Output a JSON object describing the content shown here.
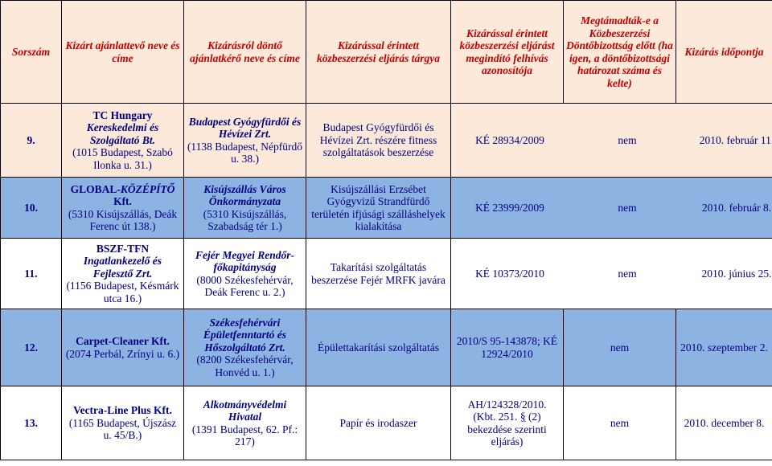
{
  "headers": [
    "Sorszám",
    "Kizárt ajánlattevő neve és címe",
    "Kizárásról döntő ajánlatkérő neve és címe",
    "Kizárással érintett közbeszerzési eljárás tárgya",
    "Kizárással érintett közbeszerzési eljárást megindító felhívás azonosítója",
    "Megtámadták-e a Közbeszerzési Döntőbizottság előtt (ha igen, a döntőbizottsági határozat száma és kelte)",
    "Kizárás időpontja"
  ],
  "rows": [
    {
      "num": "9.",
      "bidder": {
        "name_bold": "TC Hungary",
        "name_italic": "Kereskedelmi és Szolgáltató Bt.",
        "address": "(1015 Budapest, Szabó Ilonka u. 31.)"
      },
      "authority": {
        "name_italic": "Budapest Gyógyfürdői és Hévízei Zrt.",
        "address": "(1138 Budapest, Népfürdő u. 38.)"
      },
      "subject": "Budapest Gyógyfürdői és Hévízei Zrt. részére fitness szolgáltatások beszerzése",
      "notice_id": "KÉ 28934/2009",
      "challenged": "nem",
      "date": "2010. február 11."
    },
    {
      "num": "10.",
      "bidder": {
        "name_bold": "GLOBAL-",
        "name_italic": "KÖZÉPÍTŐ",
        "name_bold2": "Kft.",
        "address": "(5310 Kisújszállás, Deák Ferenc út 138.)"
      },
      "authority": {
        "name_italic": "Kisújszállás Város Önkormányzata",
        "address": "(5310 Kisújszállás, Szabadság tér 1.)"
      },
      "subject": "Kisújszállási Erzsébet Gyógyvizű Strandfürdő területén ifjúsági szálláshelyek kialakítása",
      "notice_id": "KÉ 23999/2009",
      "challenged": "nem",
      "date": "2010. február 8."
    },
    {
      "num": "11.",
      "bidder": {
        "name_bold": "BSZF-TFN",
        "name_italic": "Ingatlankezelő és Fejlesztő Zrt.",
        "address": "(1156 Budapest, Késmárk utca 16.)"
      },
      "authority": {
        "name_italic": "Fejér Megyei Rendőr-főkapitányság",
        "address": "(8000 Székesfehérvár, Deák Ferenc u. 2.)"
      },
      "subject": "Takarítási szolgáltatás beszerzése Fejér MRFK javára",
      "notice_id": "KÉ 10373/2010",
      "challenged": "nem",
      "date": "2010. június 25."
    },
    {
      "num": "12.",
      "bidder": {
        "name_bold": "Carpet-Cleaner Kft.",
        "name_italic": "",
        "address": "(2074 Perbál, Zrínyi u. 6.)"
      },
      "authority": {
        "name_italic": "Székesfehérvári Épületfenntartó és Hőszolgáltató Zrt.",
        "address": "(8200 Székesfehérvár, Honvéd u. 1.)"
      },
      "subject": "Épülettakarítási szolgáltatás",
      "notice_id": "2010/S 95-143878; KÉ 12924/2010",
      "challenged": "nem",
      "date": "2010. szeptember 2."
    },
    {
      "num": "13.",
      "bidder": {
        "name_bold": "Vectra-Line Plus Kft.",
        "name_italic": "",
        "address": "(1165 Budapest, Újszász u. 45/B.)"
      },
      "authority": {
        "name_italic": "Alkotmányvédelmi Hivatal",
        "address": "(1391 Budapest, 62. Pf.: 217)"
      },
      "subject": "Papír és irodaszer",
      "notice_id_l1": "AH/124328/2010.",
      "notice_id_l2a": "(Kbt. 251.",
      "notice_id_l2b": "§",
      "notice_id_l2c": "(2)",
      "notice_id_l3": "bekezdése szerinti eljárás)",
      "challenged": "nem",
      "date": "2010. december 8."
    }
  ]
}
